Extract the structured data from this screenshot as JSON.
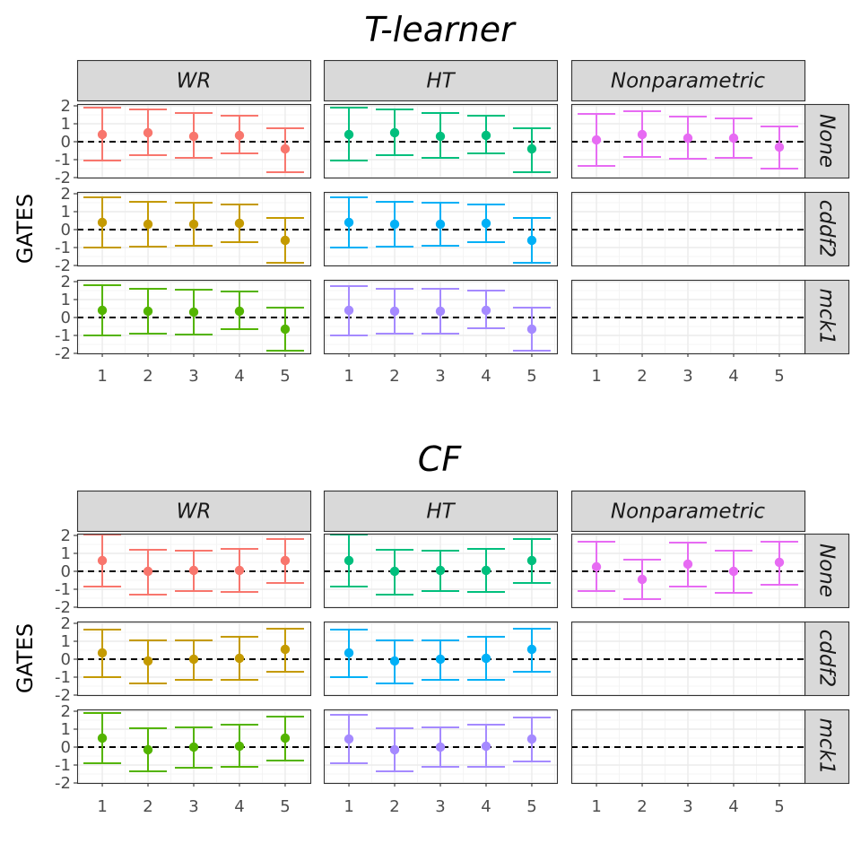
{
  "chart_data": [
    {
      "type": "errorbar",
      "title": "T-learner",
      "ylabel": "GATES",
      "xlabel": "",
      "columns": [
        "WR",
        "HT",
        "Nonparametric"
      ],
      "rows": [
        "None",
        "cddf2",
        "mck1"
      ],
      "x": [
        1,
        2,
        3,
        4,
        5
      ],
      "x_tick_labels": [
        "1",
        "2",
        "3",
        "4",
        "5"
      ],
      "ylim": [
        -2,
        2.1
      ],
      "y_ticks": [
        2,
        1,
        0,
        -1,
        -2
      ],
      "y_tick_labels": [
        "2",
        "1",
        "0",
        "-1",
        "-2"
      ],
      "reference_line": 0,
      "panels": [
        {
          "col": "WR",
          "row": "None",
          "color": "#F8766D",
          "points": [
            {
              "x": 1,
              "estimate": 0.4,
              "lower": -1.05,
              "upper": 1.9
            },
            {
              "x": 2,
              "estimate": 0.5,
              "lower": -0.75,
              "upper": 1.8
            },
            {
              "x": 3,
              "estimate": 0.3,
              "lower": -0.9,
              "upper": 1.6
            },
            {
              "x": 4,
              "estimate": 0.35,
              "lower": -0.65,
              "upper": 1.45
            },
            {
              "x": 5,
              "estimate": -0.4,
              "lower": -1.7,
              "upper": 0.75
            }
          ]
        },
        {
          "col": "HT",
          "row": "None",
          "color": "#00BF7D",
          "points": [
            {
              "x": 1,
              "estimate": 0.4,
              "lower": -1.05,
              "upper": 1.9
            },
            {
              "x": 2,
              "estimate": 0.5,
              "lower": -0.75,
              "upper": 1.8
            },
            {
              "x": 3,
              "estimate": 0.3,
              "lower": -0.9,
              "upper": 1.6
            },
            {
              "x": 4,
              "estimate": 0.35,
              "lower": -0.65,
              "upper": 1.45
            },
            {
              "x": 5,
              "estimate": -0.4,
              "lower": -1.7,
              "upper": 0.75
            }
          ]
        },
        {
          "col": "Nonparametric",
          "row": "None",
          "color": "#E76BF3",
          "points": [
            {
              "x": 1,
              "estimate": 0.1,
              "lower": -1.35,
              "upper": 1.55
            },
            {
              "x": 2,
              "estimate": 0.4,
              "lower": -0.85,
              "upper": 1.7
            },
            {
              "x": 3,
              "estimate": 0.2,
              "lower": -0.95,
              "upper": 1.4
            },
            {
              "x": 4,
              "estimate": 0.2,
              "lower": -0.9,
              "upper": 1.3
            },
            {
              "x": 5,
              "estimate": -0.3,
              "lower": -1.5,
              "upper": 0.85
            }
          ]
        },
        {
          "col": "WR",
          "row": "cddf2",
          "color": "#C49A00",
          "points": [
            {
              "x": 1,
              "estimate": 0.4,
              "lower": -1.0,
              "upper": 1.8
            },
            {
              "x": 2,
              "estimate": 0.3,
              "lower": -0.95,
              "upper": 1.55
            },
            {
              "x": 3,
              "estimate": 0.3,
              "lower": -0.9,
              "upper": 1.5
            },
            {
              "x": 4,
              "estimate": 0.35,
              "lower": -0.7,
              "upper": 1.4
            },
            {
              "x": 5,
              "estimate": -0.6,
              "lower": -1.85,
              "upper": 0.65
            }
          ]
        },
        {
          "col": "HT",
          "row": "cddf2",
          "color": "#00B0F6",
          "points": [
            {
              "x": 1,
              "estimate": 0.4,
              "lower": -1.0,
              "upper": 1.8
            },
            {
              "x": 2,
              "estimate": 0.3,
              "lower": -0.95,
              "upper": 1.55
            },
            {
              "x": 3,
              "estimate": 0.3,
              "lower": -0.9,
              "upper": 1.5
            },
            {
              "x": 4,
              "estimate": 0.35,
              "lower": -0.7,
              "upper": 1.4
            },
            {
              "x": 5,
              "estimate": -0.6,
              "lower": -1.85,
              "upper": 0.65
            }
          ]
        },
        {
          "col": "Nonparametric",
          "row": "cddf2",
          "color": "#E76BF3",
          "points": []
        },
        {
          "col": "WR",
          "row": "mck1",
          "color": "#53B400",
          "points": [
            {
              "x": 1,
              "estimate": 0.4,
              "lower": -1.0,
              "upper": 1.8
            },
            {
              "x": 2,
              "estimate": 0.35,
              "lower": -0.9,
              "upper": 1.6
            },
            {
              "x": 3,
              "estimate": 0.3,
              "lower": -0.95,
              "upper": 1.55
            },
            {
              "x": 4,
              "estimate": 0.35,
              "lower": -0.65,
              "upper": 1.45
            },
            {
              "x": 5,
              "estimate": -0.65,
              "lower": -1.85,
              "upper": 0.55
            }
          ]
        },
        {
          "col": "HT",
          "row": "mck1",
          "color": "#A58AFF",
          "points": [
            {
              "x": 1,
              "estimate": 0.4,
              "lower": -1.0,
              "upper": 1.75
            },
            {
              "x": 2,
              "estimate": 0.35,
              "lower": -0.9,
              "upper": 1.6
            },
            {
              "x": 3,
              "estimate": 0.35,
              "lower": -0.9,
              "upper": 1.6
            },
            {
              "x": 4,
              "estimate": 0.4,
              "lower": -0.6,
              "upper": 1.5
            },
            {
              "x": 5,
              "estimate": -0.65,
              "lower": -1.85,
              "upper": 0.55
            }
          ]
        },
        {
          "col": "Nonparametric",
          "row": "mck1",
          "color": "#E76BF3",
          "points": []
        }
      ]
    },
    {
      "type": "errorbar",
      "title": "CF",
      "ylabel": "GATES",
      "xlabel": "",
      "columns": [
        "WR",
        "HT",
        "Nonparametric"
      ],
      "rows": [
        "None",
        "cddf2",
        "mck1"
      ],
      "x": [
        1,
        2,
        3,
        4,
        5
      ],
      "x_tick_labels": [
        "1",
        "2",
        "3",
        "4",
        "5"
      ],
      "ylim": [
        -2,
        2.1
      ],
      "y_ticks": [
        2,
        1,
        0,
        -1,
        -2
      ],
      "y_tick_labels": [
        "2",
        "1",
        "0",
        "-1",
        "-2"
      ],
      "reference_line": 0,
      "panels": [
        {
          "col": "WR",
          "row": "None",
          "color": "#F8766D",
          "points": [
            {
              "x": 1,
              "estimate": 0.6,
              "lower": -0.85,
              "upper": 2.05
            },
            {
              "x": 2,
              "estimate": 0.0,
              "lower": -1.3,
              "upper": 1.2
            },
            {
              "x": 3,
              "estimate": 0.05,
              "lower": -1.1,
              "upper": 1.15
            },
            {
              "x": 4,
              "estimate": 0.05,
              "lower": -1.15,
              "upper": 1.25
            },
            {
              "x": 5,
              "estimate": 0.6,
              "lower": -0.65,
              "upper": 1.8
            }
          ]
        },
        {
          "col": "HT",
          "row": "None",
          "color": "#00BF7D",
          "points": [
            {
              "x": 1,
              "estimate": 0.6,
              "lower": -0.85,
              "upper": 2.05
            },
            {
              "x": 2,
              "estimate": 0.0,
              "lower": -1.3,
              "upper": 1.2
            },
            {
              "x": 3,
              "estimate": 0.05,
              "lower": -1.1,
              "upper": 1.15
            },
            {
              "x": 4,
              "estimate": 0.05,
              "lower": -1.15,
              "upper": 1.25
            },
            {
              "x": 5,
              "estimate": 0.6,
              "lower": -0.65,
              "upper": 1.8
            }
          ]
        },
        {
          "col": "Nonparametric",
          "row": "None",
          "color": "#E76BF3",
          "points": [
            {
              "x": 1,
              "estimate": 0.25,
              "lower": -1.1,
              "upper": 1.65
            },
            {
              "x": 2,
              "estimate": -0.45,
              "lower": -1.55,
              "upper": 0.65
            },
            {
              "x": 3,
              "estimate": 0.4,
              "lower": -0.85,
              "upper": 1.6
            },
            {
              "x": 4,
              "estimate": 0.0,
              "lower": -1.2,
              "upper": 1.15
            },
            {
              "x": 5,
              "estimate": 0.5,
              "lower": -0.75,
              "upper": 1.65
            }
          ]
        },
        {
          "col": "WR",
          "row": "cddf2",
          "color": "#C49A00",
          "points": [
            {
              "x": 1,
              "estimate": 0.35,
              "lower": -1.0,
              "upper": 1.65
            },
            {
              "x": 2,
              "estimate": -0.1,
              "lower": -1.35,
              "upper": 1.05
            },
            {
              "x": 3,
              "estimate": 0.0,
              "lower": -1.15,
              "upper": 1.05
            },
            {
              "x": 4,
              "estimate": 0.05,
              "lower": -1.15,
              "upper": 1.25
            },
            {
              "x": 5,
              "estimate": 0.55,
              "lower": -0.7,
              "upper": 1.7
            }
          ]
        },
        {
          "col": "HT",
          "row": "cddf2",
          "color": "#00B0F6",
          "points": [
            {
              "x": 1,
              "estimate": 0.35,
              "lower": -1.0,
              "upper": 1.65
            },
            {
              "x": 2,
              "estimate": -0.1,
              "lower": -1.35,
              "upper": 1.05
            },
            {
              "x": 3,
              "estimate": 0.0,
              "lower": -1.15,
              "upper": 1.05
            },
            {
              "x": 4,
              "estimate": 0.05,
              "lower": -1.15,
              "upper": 1.25
            },
            {
              "x": 5,
              "estimate": 0.55,
              "lower": -0.7,
              "upper": 1.7
            }
          ]
        },
        {
          "col": "Nonparametric",
          "row": "cddf2",
          "color": "#E76BF3",
          "points": []
        },
        {
          "col": "WR",
          "row": "mck1",
          "color": "#53B400",
          "points": [
            {
              "x": 1,
              "estimate": 0.5,
              "lower": -0.9,
              "upper": 1.9
            },
            {
              "x": 2,
              "estimate": -0.15,
              "lower": -1.35,
              "upper": 1.05
            },
            {
              "x": 3,
              "estimate": 0.0,
              "lower": -1.15,
              "upper": 1.1
            },
            {
              "x": 4,
              "estimate": 0.05,
              "lower": -1.1,
              "upper": 1.25
            },
            {
              "x": 5,
              "estimate": 0.5,
              "lower": -0.75,
              "upper": 1.7
            }
          ]
        },
        {
          "col": "HT",
          "row": "mck1",
          "color": "#A58AFF",
          "points": [
            {
              "x": 1,
              "estimate": 0.45,
              "lower": -0.9,
              "upper": 1.8
            },
            {
              "x": 2,
              "estimate": -0.15,
              "lower": -1.35,
              "upper": 1.05
            },
            {
              "x": 3,
              "estimate": 0.0,
              "lower": -1.1,
              "upper": 1.1
            },
            {
              "x": 4,
              "estimate": 0.05,
              "lower": -1.1,
              "upper": 1.25
            },
            {
              "x": 5,
              "estimate": 0.45,
              "lower": -0.8,
              "upper": 1.65
            }
          ]
        },
        {
          "col": "Nonparametric",
          "row": "mck1",
          "color": "#E76BF3",
          "points": []
        }
      ]
    }
  ]
}
